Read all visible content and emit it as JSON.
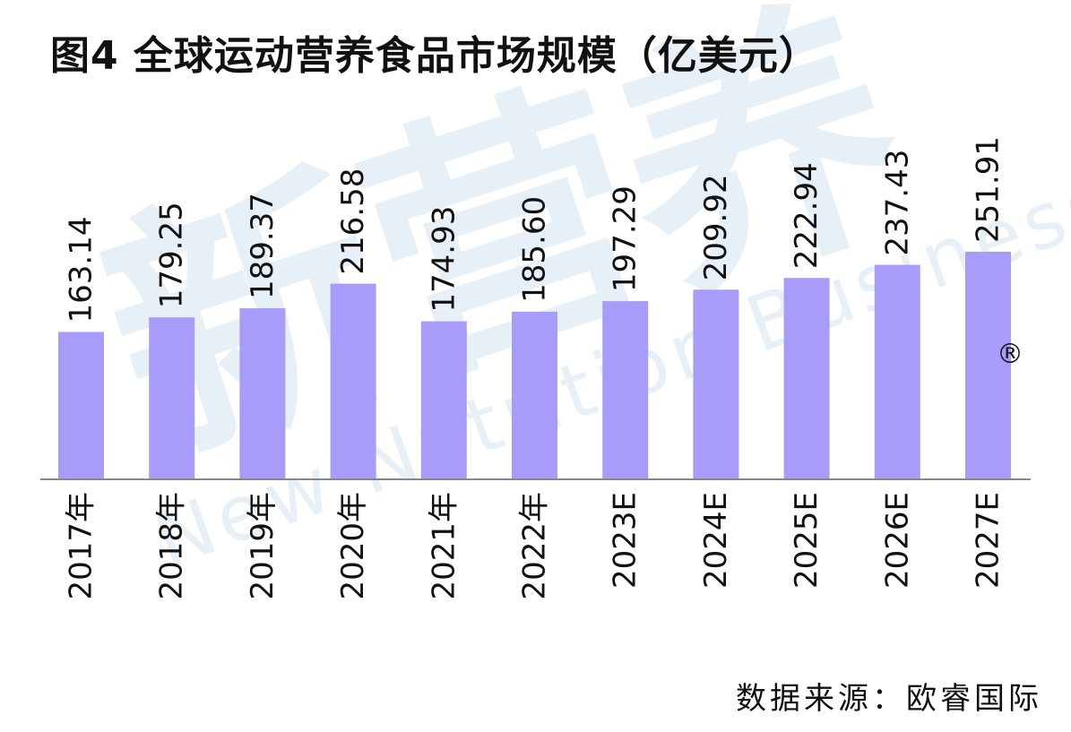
{
  "title": "图4 全球运动营养食品市场规模（亿美元）",
  "source": "数据来源：欧睿国际",
  "watermark": {
    "cn": "新营养",
    "en": "New Nutrition Business",
    "mark": "®"
  },
  "colors": {
    "bar": "#a79cfa",
    "axis": "#888888",
    "text": "#111111"
  },
  "chart_data": {
    "type": "bar",
    "title": "图4 全球运动营养食品市场规模（亿美元）",
    "categories": [
      "2017年",
      "2018年",
      "2019年",
      "2020年",
      "2021年",
      "2022年",
      "2023E",
      "2024E",
      "2025E",
      "2026E",
      "2027E"
    ],
    "values": [
      163.14,
      179.25,
      189.37,
      216.58,
      174.93,
      185.6,
      197.29,
      209.92,
      222.94,
      237.43,
      251.91
    ],
    "data_labels": [
      "163.14",
      "179.25",
      "189.37",
      "216.58",
      "174.93",
      "185.60",
      "197.29",
      "209.92",
      "222.94",
      "237.43",
      "251.91"
    ],
    "ylim": [
      0,
      251.91
    ],
    "grid": false,
    "legend": "none"
  }
}
